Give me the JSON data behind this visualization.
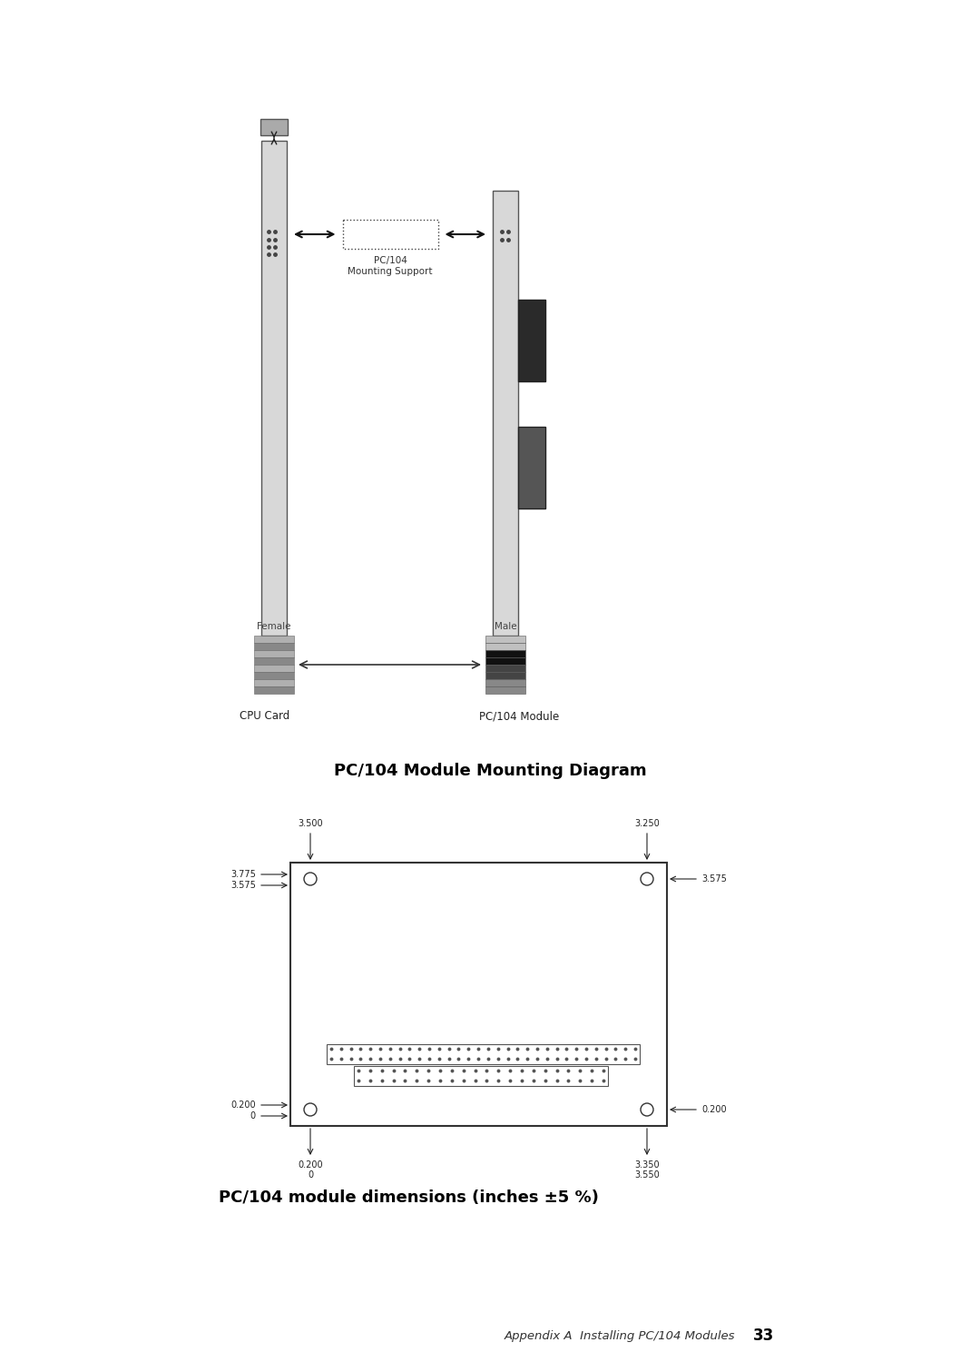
{
  "bg_color": "#ffffff",
  "title_mounting": "PC/104 Module Mounting Diagram",
  "title_dimensions": "PC/104 module dimensions (inches ±5 %)",
  "footer_text": "Appendix A  Installing PC/104 Modules",
  "footer_page": "33",
  "cpu_card_label": "CPU Card",
  "pc104_module_label": "PC/104 Module",
  "female_label": "Female",
  "male_label": "Male",
  "mounting_support_label": "PC/104\nMounting Support",
  "dim_top_left": "3.500",
  "dim_top_right": "3.250",
  "dim_left_top1": "3.775",
  "dim_left_top2": "3.575",
  "dim_right_top": "3.575",
  "dim_left_bot1": "0.200",
  "dim_left_bot2": "0",
  "dim_right_bot": "0.200",
  "dim_bot_left1": "0.200",
  "dim_bot_left2": "0",
  "dim_bot_right1": "3.350",
  "dim_bot_right2": "3.550"
}
